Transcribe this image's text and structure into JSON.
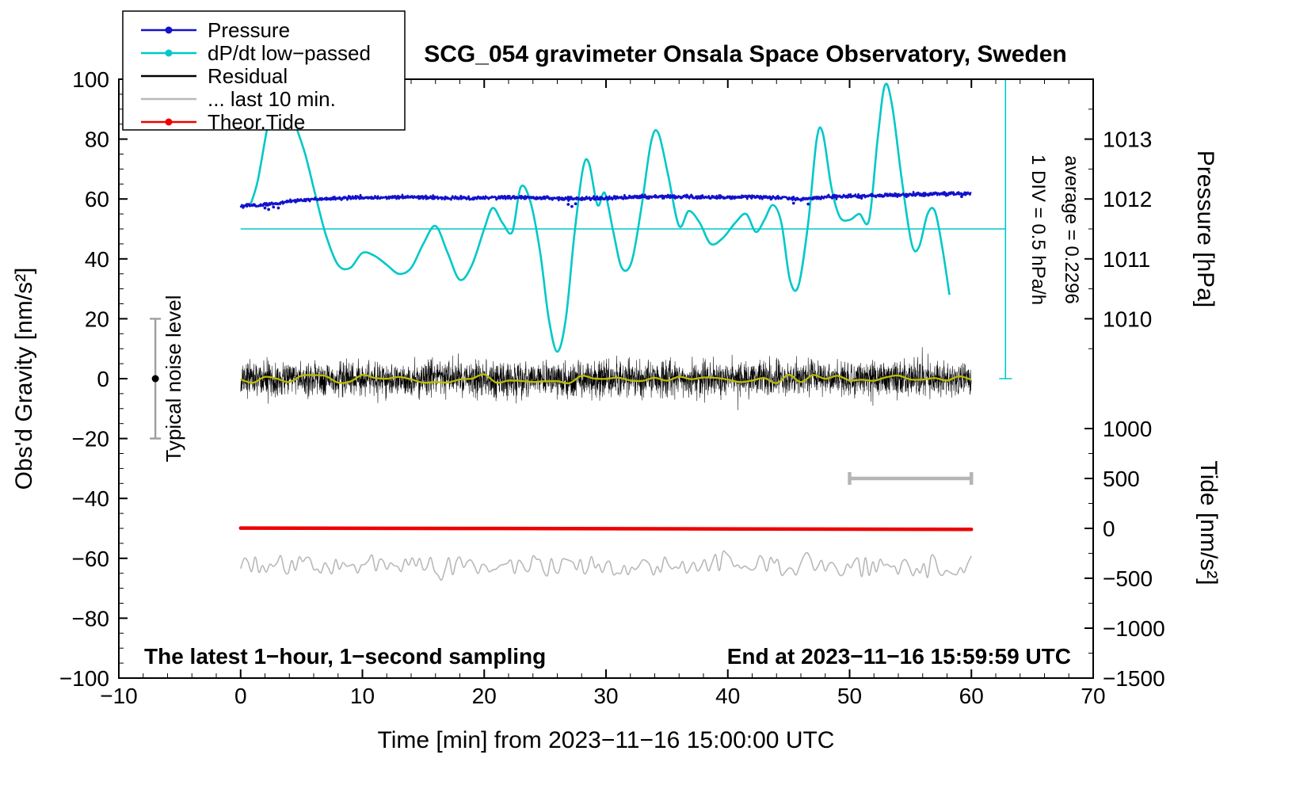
{
  "page": {
    "background": "#ffffff"
  },
  "chart": {
    "title": "SCG_054 gravimeter Onsala Space Observatory, Sweden",
    "xlabel": "Time [min] from 2023−11−16 15:00:00 UTC",
    "ylabel_left": "Obs'd Gravity [nm/s²]",
    "ylabel_pressure": "Pressure [hPa]",
    "ylabel_tide": "Tide [nm/s²]",
    "note_left_bottom": "The latest 1−hour, 1−second sampling",
    "note_right_bottom": "End at 2023−11−16 15:59:59 UTC",
    "note_div": "1 DIV = 0.5 hPa/h",
    "note_average": "average = 0.2296",
    "note_noise": "Typical noise level"
  },
  "legend": {
    "entries": [
      {
        "label": "Pressure",
        "color": "#1212cc",
        "marker": "line-dot"
      },
      {
        "label": "dP/dt low−passed",
        "color": "#00c8c8",
        "marker": "line-dot"
      },
      {
        "label": "Residual",
        "color": "#000000",
        "marker": "line"
      },
      {
        "label": "... last 10 min.",
        "color": "#b8b8b8",
        "marker": "line"
      },
      {
        "label": "Theor.Tide",
        "color": "#ee0000",
        "marker": "line-dot"
      }
    ]
  },
  "chart_data": {
    "type": "line",
    "title": "SCG_054 gravimeter Onsala Space Observatory, Sweden",
    "x_axis": {
      "label": "Time [min] from 2023−11−16 15:00:00 UTC",
      "range": [
        -10,
        70
      ],
      "major_ticks": [
        -10,
        0,
        10,
        20,
        30,
        40,
        50,
        60,
        70
      ],
      "tick_labels": [
        "−10",
        "0",
        "10",
        "20",
        "30",
        "40",
        "50",
        "60",
        "70"
      ],
      "minor_step": 2
    },
    "y_left": {
      "label": "Obs'd Gravity [nm/s²]",
      "range": [
        -100,
        100
      ],
      "major_ticks": [
        100,
        80,
        60,
        40,
        20,
        0,
        -20,
        -40,
        -60,
        -80,
        -100
      ],
      "tick_labels": [
        "100",
        "80",
        "60",
        "40",
        "20",
        "0",
        "−20",
        "−40",
        "−60",
        "−80",
        "−100"
      ],
      "minor_step": 5
    },
    "y_pressure": {
      "label": "Pressure [hPa]",
      "ticks": [
        1013,
        1012,
        1011,
        1010
      ],
      "tick_labels": [
        "1013",
        "1012",
        "1011",
        "1010"
      ],
      "gravity_mapping": "g = (hPa − 1009) × 20",
      "minor_g_ticks": [
        10,
        30,
        50,
        70,
        90
      ]
    },
    "y_tide": {
      "label": "Tide [nm/s²]",
      "ticks": [
        1000,
        500,
        0,
        -500,
        -1000,
        -1500
      ],
      "tick_labels": [
        "1000",
        "500",
        "0",
        "−500",
        "−1000",
        "−1500"
      ],
      "gravity_mapping": "g = tide/30 − 50",
      "minor_tide_ticks": [
        750,
        250,
        -250,
        -750,
        -1250
      ]
    },
    "series": [
      {
        "name": "Pressure",
        "color": "#1212cc",
        "axis": "pressure",
        "x": [
          0,
          1,
          2,
          3,
          4,
          5,
          6,
          8,
          10,
          12,
          14,
          16,
          18,
          20,
          22,
          24,
          26,
          28,
          30,
          32,
          34,
          36,
          38,
          40,
          42,
          44,
          46,
          48,
          50,
          52,
          54,
          56,
          58,
          60
        ],
        "hpa": [
          1011.88,
          1011.893,
          1011.905,
          1011.93,
          1011.96,
          1011.98,
          1011.995,
          1012.01,
          1012.02,
          1012.025,
          1012.034,
          1012.026,
          1012.012,
          1012.016,
          1012.03,
          1012.024,
          1012.01,
          1012.006,
          1012.016,
          1012.03,
          1012.04,
          1012.036,
          1012.03,
          1012.026,
          1012.035,
          1012.02,
          1012.0,
          1012.026,
          1012.045,
          1012.055,
          1012.066,
          1012.08,
          1012.086,
          1012.09
        ],
        "noise_sd_g": 0.3,
        "outlier_dots_g": [
          [
            2.0,
            57.0
          ],
          [
            2.3,
            56.5
          ],
          [
            2.7,
            57.3
          ],
          [
            3.1,
            57.0
          ],
          [
            26.9,
            58.2
          ],
          [
            27.2,
            57.5
          ],
          [
            27.5,
            58.4
          ],
          [
            45.4,
            58.6
          ],
          [
            46.6,
            58.3
          ],
          [
            59.2,
            60.8
          ]
        ]
      },
      {
        "name": "dP/dt low−passed",
        "color": "#00c8c8",
        "zero_gravity": 50,
        "div_scale": "1 DIV = 0.5 hPa/h",
        "average_hpa_per_h": 0.2296,
        "points_g": [
          [
            0.8,
            58
          ],
          [
            1.4,
            66
          ],
          [
            2.2,
            84
          ],
          [
            3.0,
            99
          ],
          [
            3.7,
            97
          ],
          [
            4.5,
            85
          ],
          [
            5.3,
            75
          ],
          [
            6.1,
            62
          ],
          [
            7.0,
            48
          ],
          [
            8.0,
            38
          ],
          [
            9.0,
            37
          ],
          [
            10.0,
            42
          ],
          [
            11.0,
            41
          ],
          [
            12.0,
            38
          ],
          [
            13.0,
            35
          ],
          [
            14.0,
            37
          ],
          [
            15.0,
            45
          ],
          [
            16.0,
            51
          ],
          [
            17.0,
            42
          ],
          [
            18.0,
            33
          ],
          [
            19.0,
            38
          ],
          [
            20.0,
            50
          ],
          [
            20.7,
            57
          ],
          [
            21.5,
            52
          ],
          [
            22.3,
            49
          ],
          [
            23.0,
            64
          ],
          [
            23.8,
            59
          ],
          [
            24.6,
            42
          ],
          [
            25.3,
            20
          ],
          [
            26.0,
            9
          ],
          [
            26.7,
            20
          ],
          [
            27.4,
            48
          ],
          [
            28.1,
            70
          ],
          [
            28.6,
            72
          ],
          [
            29.3,
            58
          ],
          [
            29.9,
            62
          ],
          [
            30.6,
            49
          ],
          [
            31.3,
            37
          ],
          [
            32.1,
            39
          ],
          [
            32.9,
            57
          ],
          [
            33.7,
            79
          ],
          [
            34.3,
            82
          ],
          [
            35.1,
            68
          ],
          [
            36.0,
            51
          ],
          [
            36.8,
            56
          ],
          [
            37.7,
            52
          ],
          [
            38.6,
            45
          ],
          [
            39.6,
            47
          ],
          [
            40.6,
            52
          ],
          [
            41.5,
            55
          ],
          [
            42.3,
            49
          ],
          [
            43.0,
            53
          ],
          [
            43.7,
            58
          ],
          [
            44.4,
            52
          ],
          [
            45.1,
            33
          ],
          [
            45.8,
            31
          ],
          [
            46.6,
            52
          ],
          [
            47.3,
            80
          ],
          [
            47.8,
            82
          ],
          [
            48.5,
            64
          ],
          [
            49.2,
            54
          ],
          [
            50.0,
            53
          ],
          [
            50.8,
            55
          ],
          [
            51.6,
            53
          ],
          [
            52.3,
            80
          ],
          [
            52.9,
            98
          ],
          [
            53.5,
            91
          ],
          [
            54.3,
            66
          ],
          [
            55.1,
            45
          ],
          [
            55.7,
            44
          ],
          [
            56.4,
            55
          ],
          [
            57.0,
            56
          ],
          [
            57.6,
            44
          ],
          [
            58.2,
            28
          ]
        ]
      },
      {
        "name": "Residual",
        "color": "#000000",
        "center_g": 0,
        "sd_g": 2.9,
        "spike_prob": 0.005,
        "spike_gain": 1.9,
        "x_start": 0,
        "x_end": 60,
        "step_min": 0.016666,
        "seed": 987654
      },
      {
        "name": "Residual low−passed",
        "color": "#bcbc00",
        "center_g": 0,
        "amplitude_g": 1.5,
        "anchor_step_min": 1.0,
        "x_start": 0,
        "x_end": 60,
        "seed": 77
      },
      {
        "name": "... last 10 min.",
        "color": "#b8b8b8",
        "center_g": -62.4,
        "amplitude_g": 3.3,
        "anchor_step_min": 0.3,
        "x_start": 0,
        "x_end": 60,
        "seed": 2023
      },
      {
        "name": "Theor.Tide",
        "color": "#ee0000",
        "axis": "tide",
        "x": [
          0,
          30,
          60
        ],
        "tide": [
          3,
          -3,
          -10
        ]
      }
    ],
    "reference_lines": {
      "dpdt_zero": {
        "g": 50,
        "x_start": 0,
        "x_end": 62.8
      },
      "dpdt_scalebar": {
        "x": 62.8,
        "g_start": 0,
        "g_end": 100
      }
    },
    "scale_bars": {
      "gray_bar": {
        "g": -33.33,
        "x_start": 50,
        "x_end": 60,
        "color": "#b5b5b5"
      }
    },
    "noise_level_marker": {
      "x": -7,
      "g_start": -20,
      "g_end": 20,
      "dot_g": 0,
      "color": "#9e9e9e"
    }
  }
}
